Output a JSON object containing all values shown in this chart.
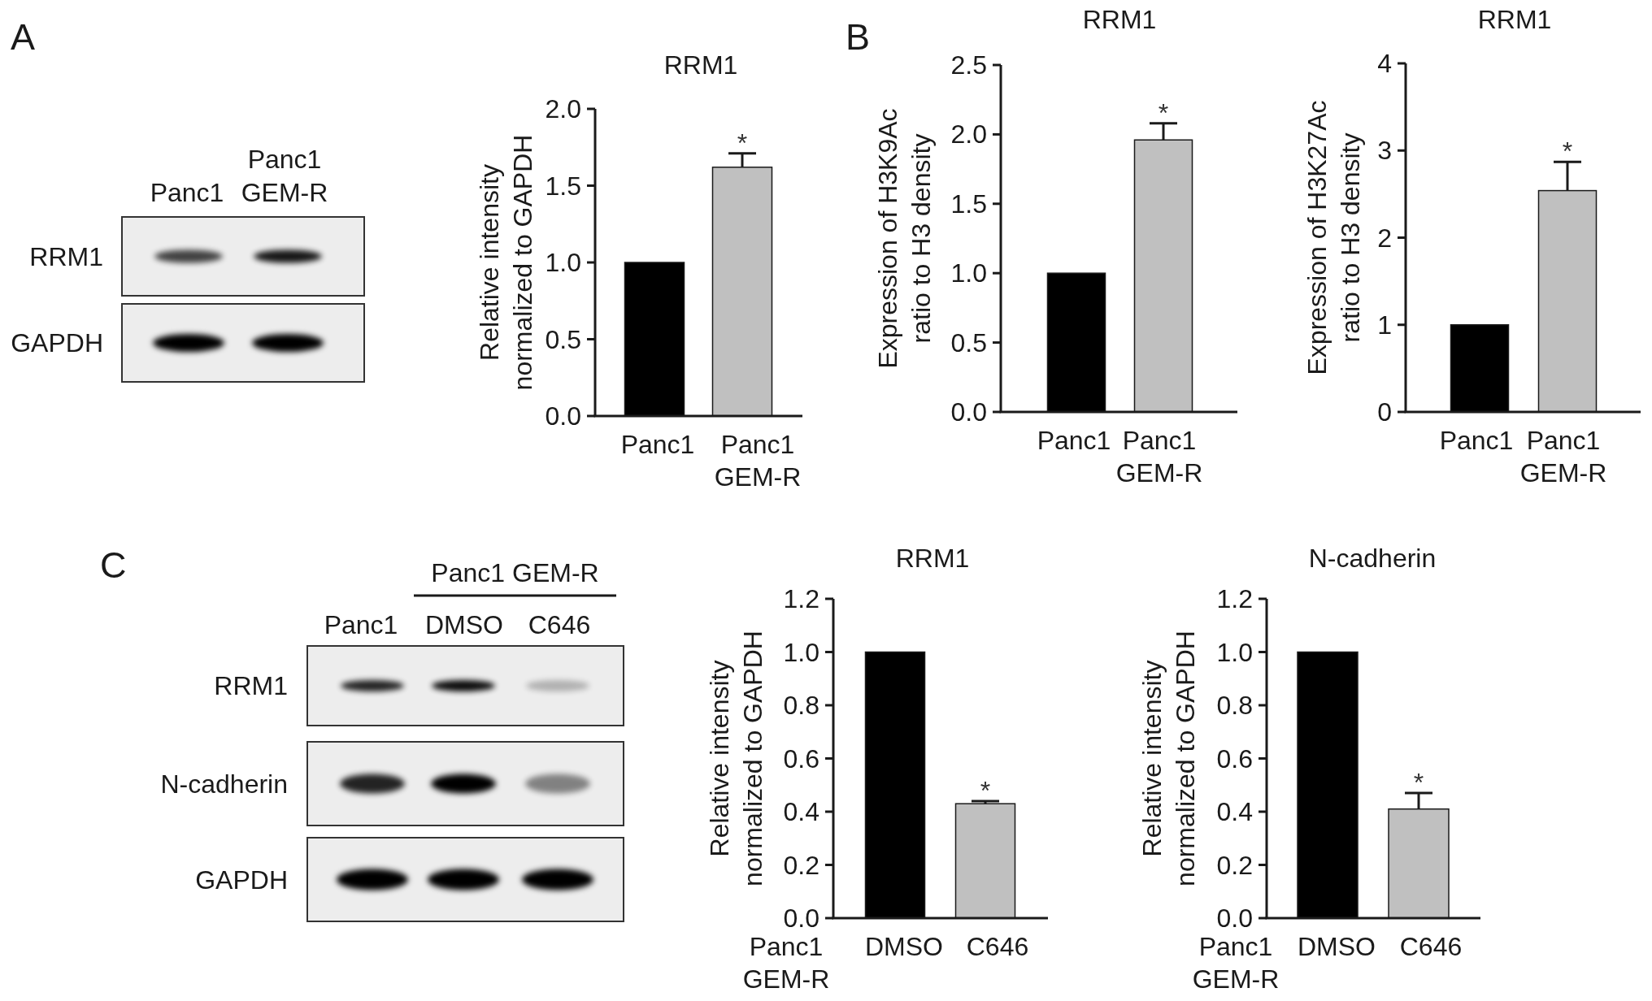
{
  "chart_data": [
    {
      "type": "other",
      "categories": [
        "Panc1",
        "Panc1\nGEM-R"
      ],
      "y_categories": [
        "RRM1",
        "GAPDH"
      ],
      "annotations": [
        "A"
      ]
    },
    {
      "type": "bar",
      "title": "RRM1",
      "ylabel": "Relative intensity\nnormalized to GAPDH",
      "categories": [
        "Panc1",
        "Panc1\nGEM-R"
      ],
      "values": [
        1.0,
        1.62
      ],
      "colors": [
        "#000000",
        "#c0c0c0"
      ],
      "errors": [
        null,
        [
          1.62,
          1.71
        ]
      ],
      "ylim": [
        0,
        2
      ],
      "yticks": [
        {
          "value": 0,
          "label": "0.0"
        },
        0.5,
        {
          "value": 1,
          "label": "1.0"
        },
        1.5,
        {
          "value": 2,
          "label": "2.0"
        }
      ],
      "annotations": [
        "*"
      ]
    },
    {
      "type": "bar",
      "title": "RRM1",
      "ylabel": "Expression of H3K9Ac\nratio to H3 density",
      "categories": [
        "Panc1",
        "Panc1\nGEM-R"
      ],
      "values": [
        1.0,
        1.96
      ],
      "colors": [
        "#000000",
        "#c0c0c0"
      ],
      "errors": [
        null,
        [
          1.96,
          2.08
        ]
      ],
      "ylim": [
        0,
        2.5
      ],
      "yticks": [
        {
          "value": 0,
          "label": "0.0"
        },
        0.5,
        {
          "value": 1,
          "label": "1.0"
        },
        1.5,
        {
          "value": 2,
          "label": "2.0"
        },
        2.5
      ],
      "annotations": [
        "B",
        "*"
      ]
    },
    {
      "type": "bar",
      "title": "RRM1",
      "ylabel": "Expression of H3K27Ac\nratio to H3 density",
      "categories": [
        "Panc1",
        "Panc1\nGEM-R"
      ],
      "values": [
        1,
        2.54
      ],
      "colors": [
        "#000000",
        "#c0c0c0"
      ],
      "errors": [
        null,
        [
          2.54,
          2.87
        ]
      ],
      "ylim": [
        0,
        4
      ],
      "yticks": [
        0,
        1,
        2,
        3,
        4
      ],
      "annotations": [
        "*"
      ]
    },
    {
      "type": "other",
      "categories": [
        "Panc1",
        "DMSO",
        "C646"
      ],
      "y_categories": [
        "RRM1",
        "N-cadherin",
        "GAPDH"
      ],
      "annotations": [
        "C",
        "Panc1 GEM-R"
      ]
    },
    {
      "type": "bar",
      "title": "RRM1",
      "xlabel": "Panc1\nGEM-R",
      "ylabel": "Relative intensity\nnormalized to GAPDH",
      "categories": [
        "DMSO",
        "C646"
      ],
      "values": [
        1.0,
        0.43
      ],
      "colors": [
        "#000000",
        "#c0c0c0"
      ],
      "errors": [
        null,
        [
          0.43,
          0.44
        ]
      ],
      "ylim": [
        0,
        1.2
      ],
      "yticks": [
        {
          "value": 0,
          "label": "0.0"
        },
        0.2,
        0.4,
        0.6,
        0.8,
        {
          "value": 1,
          "label": "1.0"
        },
        1.2
      ],
      "annotations": [
        "*"
      ]
    },
    {
      "type": "bar",
      "title": "N-cadherin",
      "xlabel": "Panc1\nGEM-R",
      "ylabel": "Relative intensity\nnormalized to GAPDH",
      "categories": [
        "DMSO",
        "C646"
      ],
      "values": [
        1.0,
        0.41
      ],
      "colors": [
        "#000000",
        "#c0c0c0"
      ],
      "errors": [
        null,
        [
          0.41,
          0.47
        ]
      ],
      "ylim": [
        0,
        1.2
      ],
      "yticks": [
        {
          "value": 0,
          "label": "0.0"
        },
        0.2,
        0.4,
        0.6,
        0.8,
        {
          "value": 1,
          "label": "1.0"
        },
        1.2
      ],
      "annotations": [
        "*"
      ]
    }
  ]
}
